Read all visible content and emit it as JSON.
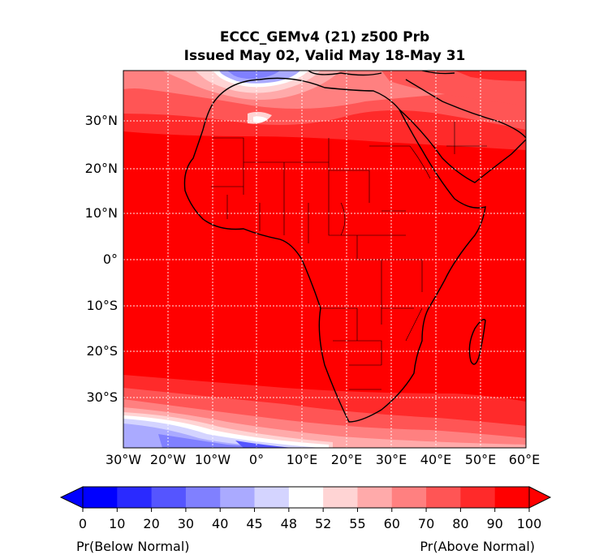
{
  "title": {
    "line1": "ECCC_GEMv4 (21) z500 Prb",
    "line2": "Issued May 02, Valid May 18-May 31"
  },
  "map": {
    "lon_labels": [
      "30°W",
      "20°W",
      "10°W",
      "0°",
      "10°E",
      "20°E",
      "30°E",
      "40°E",
      "50°E",
      "60°E"
    ],
    "lat_labels": [
      "30°N",
      "20°N",
      "10°N",
      "0°",
      "10°S",
      "20°S",
      "30°S"
    ],
    "lon_range": [
      -30,
      60
    ],
    "lat_range": [
      -40,
      42
    ],
    "gridlines": true
  },
  "colorbar": {
    "ticks": [
      "0",
      "10",
      "20",
      "30",
      "40",
      "45",
      "48",
      "52",
      "55",
      "60",
      "70",
      "80",
      "90",
      "100"
    ],
    "colors": [
      "#0000ff",
      "#2a2aff",
      "#5555ff",
      "#8080ff",
      "#aaaaff",
      "#d4d4ff",
      "#ffffff",
      "#ffd4d4",
      "#ffaaaa",
      "#ff8080",
      "#ff5555",
      "#ff2a2a",
      "#ff0000"
    ],
    "left_label": "Pr(Below Normal)",
    "right_label": "Pr(Above Normal)"
  }
}
